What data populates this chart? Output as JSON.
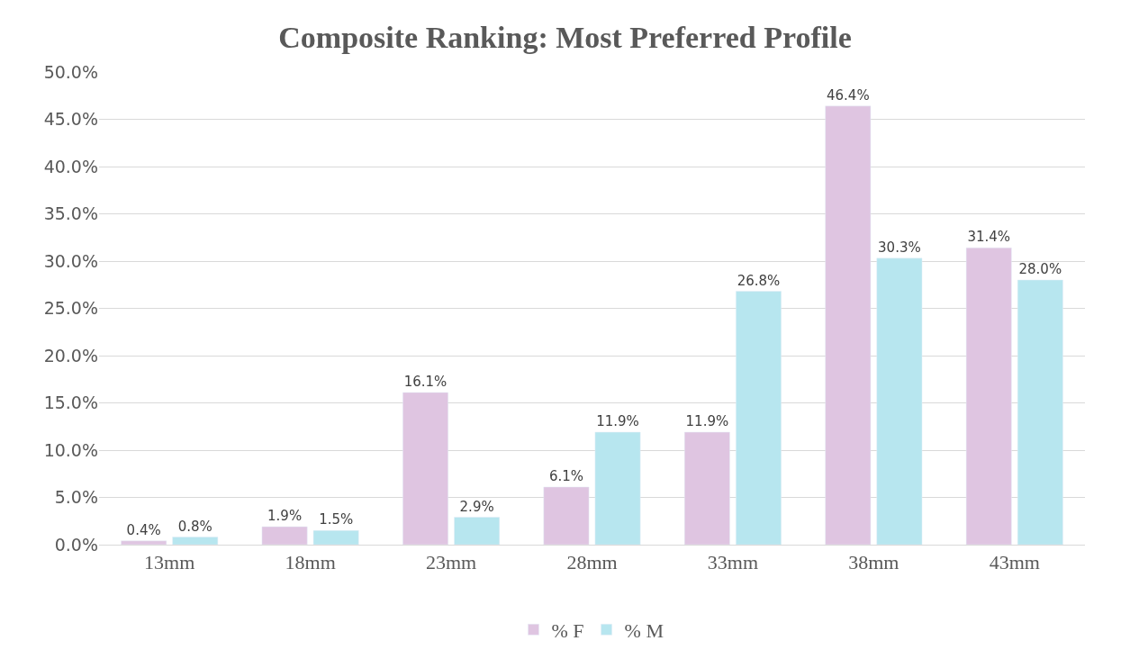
{
  "chart_data": {
    "type": "bar",
    "title": "Composite Ranking: Most Preferred Profile",
    "categories": [
      "13mm",
      "18mm",
      "23mm",
      "28mm",
      "33mm",
      "38mm",
      "43mm"
    ],
    "series": [
      {
        "name": "% F",
        "color": "#dfc5e1",
        "values": [
          0.4,
          1.9,
          16.1,
          6.1,
          11.9,
          46.4,
          31.4
        ],
        "value_labels": [
          "0.4%",
          "1.9%",
          "16.1%",
          "6.1%",
          "11.9%",
          "46.4%",
          "31.4%"
        ]
      },
      {
        "name": "% M",
        "color": "#b7e6ef",
        "values": [
          0.8,
          1.5,
          2.9,
          11.9,
          26.8,
          30.3,
          28.0
        ],
        "value_labels": [
          "0.8%",
          "1.5%",
          "2.9%",
          "11.9%",
          "26.8%",
          "30.3%",
          "28.0%"
        ]
      }
    ],
    "ylim": [
      0,
      50
    ],
    "yticks": [
      {
        "value": 0,
        "label": "0.0%"
      },
      {
        "value": 5,
        "label": "5.0%"
      },
      {
        "value": 10,
        "label": "10.0%"
      },
      {
        "value": 15,
        "label": "15.0%"
      },
      {
        "value": 20,
        "label": "20.0%"
      },
      {
        "value": 25,
        "label": "25.0%"
      },
      {
        "value": 30,
        "label": "30.0%"
      },
      {
        "value": 35,
        "label": "35.0%"
      },
      {
        "value": 40,
        "label": "40.0%"
      },
      {
        "value": 45,
        "label": "45.0%"
      },
      {
        "value": 50,
        "label": "50.0%"
      }
    ],
    "grid": "y",
    "legend": "bottom"
  }
}
